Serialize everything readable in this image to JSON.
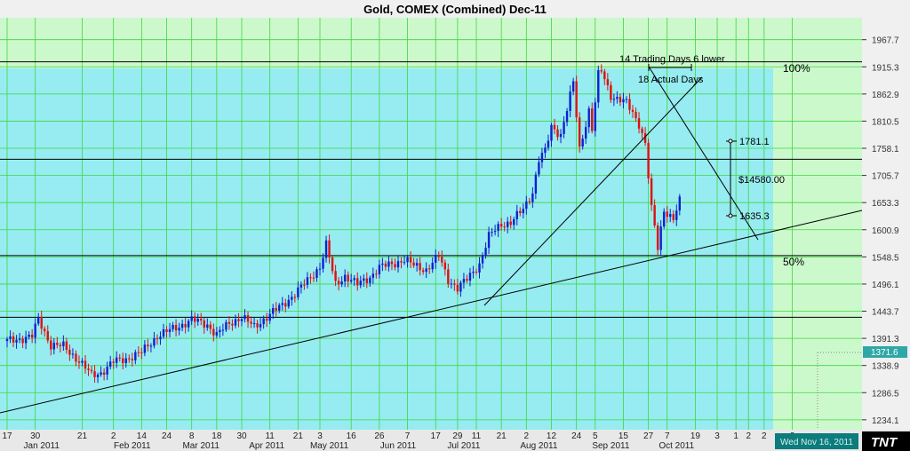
{
  "chart_data": {
    "type": "candlestick",
    "title": "Gold, COMEX (Combined) Dec-11",
    "ylim": [
      1215,
      2010
    ],
    "grid": true,
    "y_ticks": [
      1234.1,
      1286.5,
      1338.9,
      1391.3,
      1443.7,
      1496.1,
      1548.5,
      1600.9,
      1653.3,
      1705.7,
      1758.1,
      1810.5,
      1862.9,
      1915.3,
      1967.7
    ],
    "last_price": "1371.6",
    "x_day_ticks": [
      {
        "t": 0,
        "label": "17"
      },
      {
        "t": 9,
        "label": "30"
      },
      {
        "t": 24,
        "label": "21"
      },
      {
        "t": 34,
        "label": "2"
      },
      {
        "t": 43,
        "label": "14"
      },
      {
        "t": 51,
        "label": "24"
      },
      {
        "t": 59,
        "label": "8"
      },
      {
        "t": 67,
        "label": "18"
      },
      {
        "t": 75,
        "label": "30"
      },
      {
        "t": 84,
        "label": "11"
      },
      {
        "t": 93,
        "label": "21"
      },
      {
        "t": 100,
        "label": "3"
      },
      {
        "t": 110,
        "label": "16"
      },
      {
        "t": 119,
        "label": "26"
      },
      {
        "t": 128,
        "label": "7"
      },
      {
        "t": 137,
        "label": "17"
      },
      {
        "t": 144,
        "label": "29"
      },
      {
        "t": 150,
        "label": "11"
      },
      {
        "t": 158,
        "label": "21"
      },
      {
        "t": 166,
        "label": "2"
      },
      {
        "t": 174,
        "label": "12"
      },
      {
        "t": 182,
        "label": "24"
      },
      {
        "t": 188,
        "label": "5"
      },
      {
        "t": 197,
        "label": "15"
      },
      {
        "t": 205,
        "label": "27"
      },
      {
        "t": 211,
        "label": "7"
      },
      {
        "t": 220,
        "label": "19"
      },
      {
        "t": 227,
        "label": "3"
      },
      {
        "t": 233,
        "label": "1"
      },
      {
        "t": 237,
        "label": "2"
      },
      {
        "t": 242,
        "label": "2"
      },
      {
        "t": 251,
        "label": "2"
      }
    ],
    "x_month_ticks": [
      {
        "t": 11,
        "label": "Jan 2011"
      },
      {
        "t": 40,
        "label": "Feb 2011"
      },
      {
        "t": 62,
        "label": "Mar 2011"
      },
      {
        "t": 83,
        "label": "Apr 2011"
      },
      {
        "t": 103,
        "label": "May 2011"
      },
      {
        "t": 125,
        "label": "Jun 2011"
      },
      {
        "t": 146,
        "label": "Jul 2011"
      },
      {
        "t": 170,
        "label": "Aug 2011"
      },
      {
        "t": 193,
        "label": "Sep 2011"
      },
      {
        "t": 214,
        "label": "Oct 2011"
      }
    ],
    "price_path": [
      [
        0,
        1386
      ],
      [
        8,
        1395
      ],
      [
        10,
        1429
      ],
      [
        14,
        1378
      ],
      [
        18,
        1376
      ],
      [
        23,
        1348
      ],
      [
        27,
        1320
      ],
      [
        30,
        1325
      ],
      [
        34,
        1346
      ],
      [
        38,
        1352
      ],
      [
        43,
        1364
      ],
      [
        48,
        1396
      ],
      [
        54,
        1412
      ],
      [
        59,
        1427
      ],
      [
        64,
        1418
      ],
      [
        67,
        1398
      ],
      [
        71,
        1420
      ],
      [
        75,
        1433
      ],
      [
        79,
        1413
      ],
      [
        84,
        1438
      ],
      [
        88,
        1455
      ],
      [
        92,
        1478
      ],
      [
        96,
        1502
      ],
      [
        100,
        1530
      ],
      [
        102,
        1572
      ],
      [
        105,
        1495
      ],
      [
        108,
        1512
      ],
      [
        112,
        1495
      ],
      [
        116,
        1510
      ],
      [
        119,
        1528
      ],
      [
        123,
        1535
      ],
      [
        127,
        1543
      ],
      [
        130,
        1532
      ],
      [
        134,
        1524
      ],
      [
        138,
        1550
      ],
      [
        141,
        1505
      ],
      [
        144,
        1488
      ],
      [
        147,
        1505
      ],
      [
        151,
        1535
      ],
      [
        154,
        1588
      ],
      [
        158,
        1612
      ],
      [
        161,
        1615
      ],
      [
        165,
        1640
      ],
      [
        168,
        1674
      ],
      [
        170,
        1737
      ],
      [
        172,
        1752
      ],
      [
        174,
        1799
      ],
      [
        177,
        1785
      ],
      [
        180,
        1859
      ],
      [
        181,
        1884
      ],
      [
        183,
        1756
      ],
      [
        186,
        1832
      ],
      [
        187,
        1795
      ],
      [
        189,
        1899
      ],
      [
        190,
        1907
      ],
      [
        193,
        1860
      ],
      [
        196,
        1852
      ],
      [
        198,
        1845
      ],
      [
        202,
        1806
      ],
      [
        204,
        1768
      ],
      [
        206,
        1640
      ],
      [
        207,
        1605
      ],
      [
        208,
        1565
      ],
      [
        210,
        1640
      ],
      [
        213,
        1622
      ],
      [
        215,
        1655
      ]
    ],
    "annotations": [
      {
        "text": "14 Trading Days 6 lower"
      },
      {
        "text": "18 Actual Days"
      },
      {
        "text": "1781.1"
      },
      {
        "text": "$14580.00"
      },
      {
        "text": "1635.3"
      }
    ],
    "levels": [
      {
        "name": "100%",
        "value": 1925
      },
      {
        "name": "",
        "value": 1737
      },
      {
        "name": "50%",
        "value": 1551
      },
      {
        "name": "",
        "value": 1432
      }
    ],
    "bottom_status": "Wed Nov 16, 2011",
    "logo": "TNT"
  }
}
